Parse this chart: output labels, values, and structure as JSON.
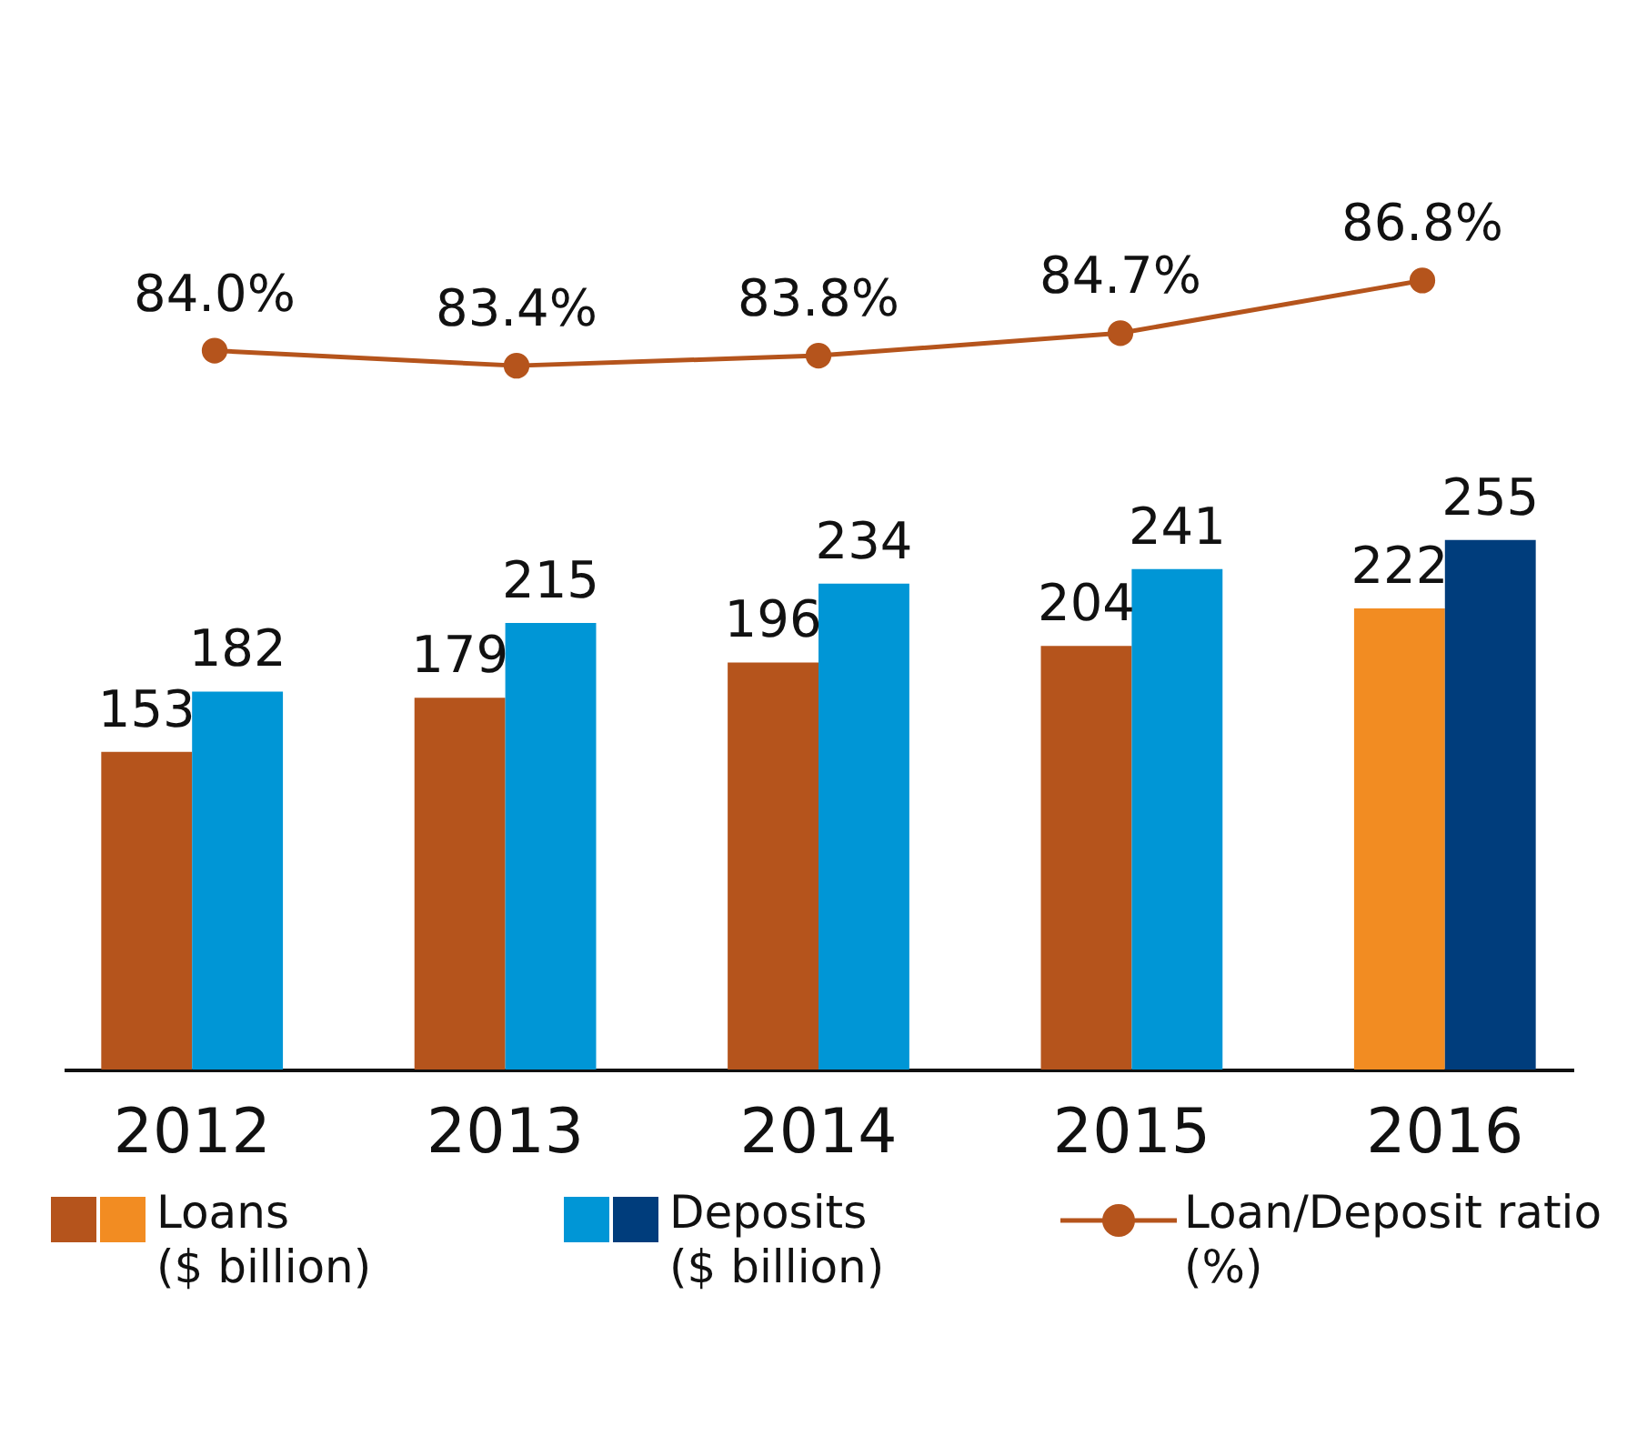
{
  "chart_data": [
    {
      "type": "line",
      "categories": [
        "2012",
        "2013",
        "2014",
        "2015",
        "2016"
      ],
      "tick_labels": false,
      "marker": "circle",
      "series": [
        {
          "name": "Loan/Deposit ratio (%)",
          "color": "#b5541c",
          "values": [
            84.0,
            83.4,
            83.8,
            84.7,
            86.8
          ],
          "value_labels": [
            "84.0%",
            "83.4%",
            "83.8%",
            "84.7%",
            "86.8%"
          ]
        }
      ]
    },
    {
      "type": "bar",
      "categories": [
        "2012",
        "2013",
        "2014",
        "2015",
        "2016"
      ],
      "data_labels": true,
      "legend": "bottom",
      "series": [
        {
          "name": "Loans ($ billion)",
          "colors": [
            "#b5541c",
            "#b5541c",
            "#b5541c",
            "#b5541c",
            "#f28c22"
          ],
          "values": [
            153,
            179,
            196,
            204,
            222
          ]
        },
        {
          "name": "Deposits ($ billion)",
          "colors": [
            "#0096d6",
            "#0096d6",
            "#0096d6",
            "#0096d6",
            "#003d7c"
          ],
          "values": [
            182,
            215,
            234,
            241,
            255
          ]
        }
      ]
    }
  ]
}
